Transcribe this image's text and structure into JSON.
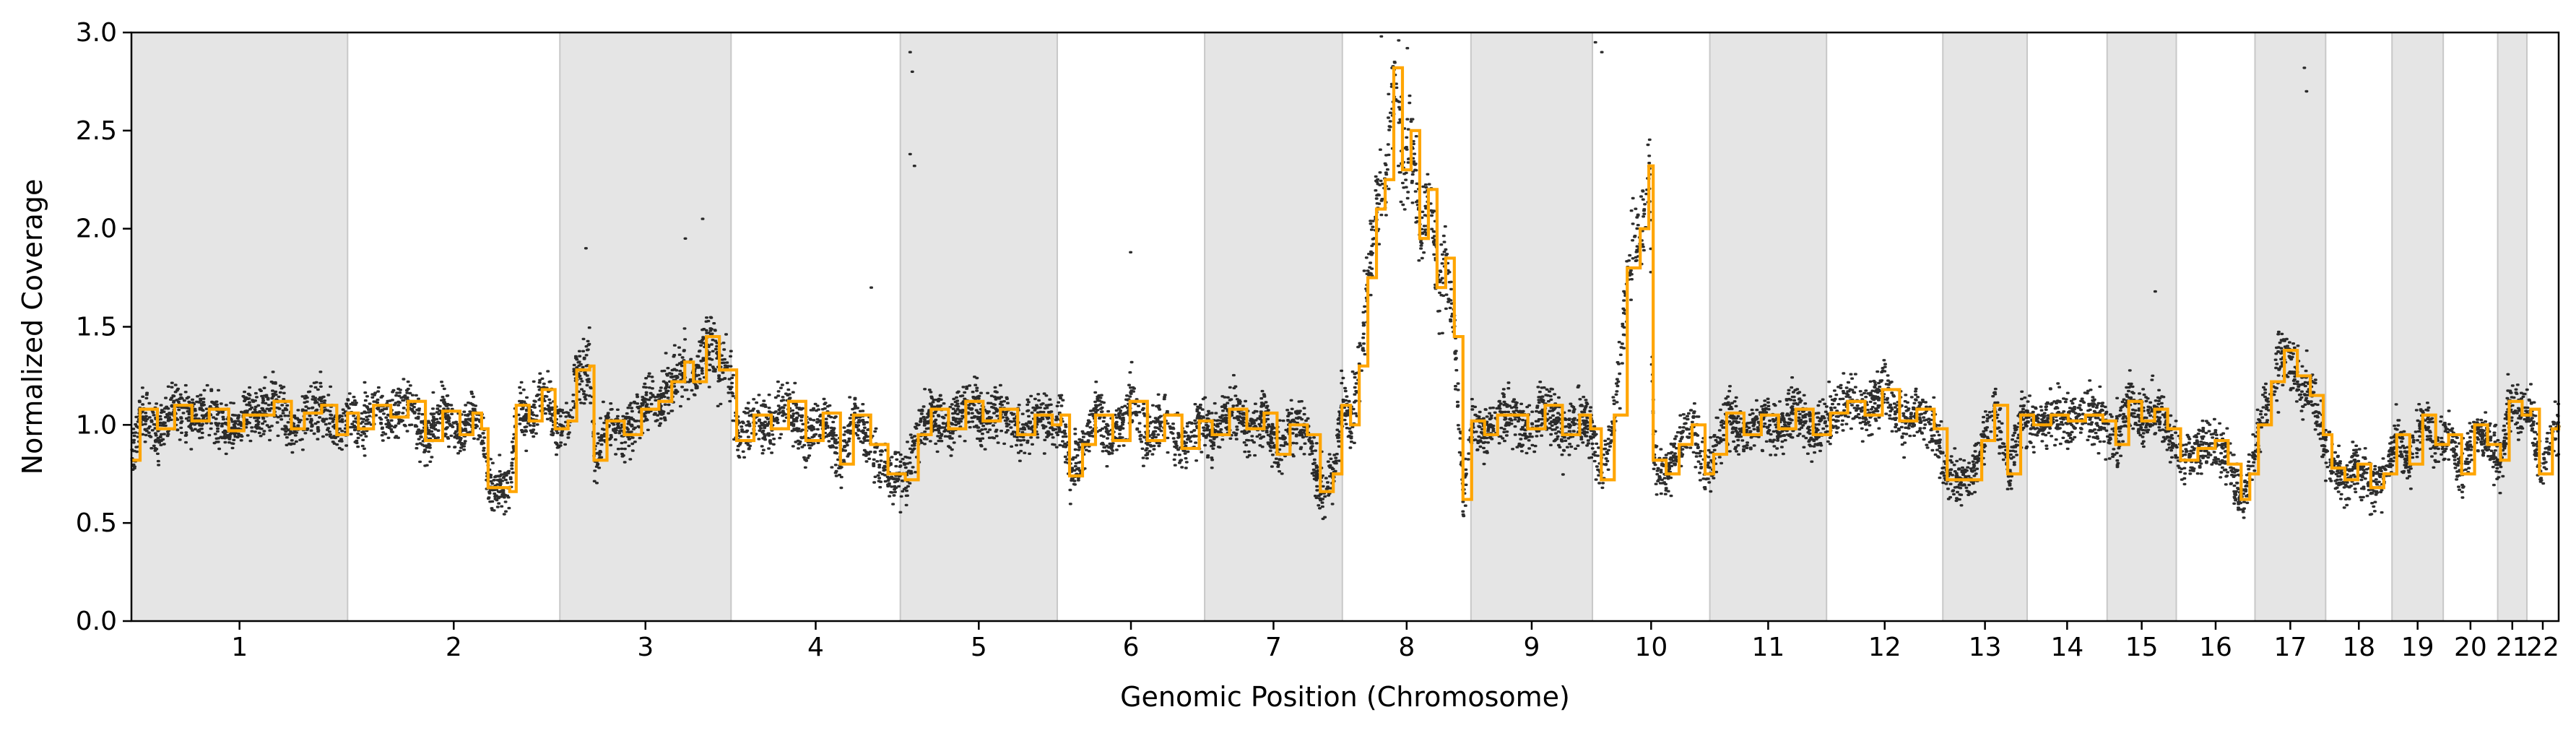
{
  "chart_data": {
    "type": "scatter",
    "xlabel": "Genomic Position (Chromosome)",
    "ylabel": "Normalized Coverage",
    "ylim": [
      0.0,
      3.0
    ],
    "yticks": [
      "0.0",
      "0.5",
      "1.0",
      "1.5",
      "2.0",
      "2.5",
      "3.0"
    ],
    "grid": false,
    "legend": "none",
    "colors": {
      "points": "#000000",
      "segments": "#FFA500",
      "band": "#E5E5E5",
      "band_edge": "#C8C8C8"
    },
    "chromosomes": [
      {
        "label": "1",
        "start": 0.0,
        "end": 1.0,
        "shaded": true
      },
      {
        "label": "2",
        "start": 1.0,
        "end": 1.982,
        "shaded": false
      },
      {
        "label": "3",
        "start": 1.982,
        "end": 2.774,
        "shaded": true
      },
      {
        "label": "4",
        "start": 2.774,
        "end": 3.557,
        "shaded": false
      },
      {
        "label": "5",
        "start": 3.557,
        "end": 4.283,
        "shaded": true
      },
      {
        "label": "6",
        "start": 4.283,
        "end": 4.965,
        "shaded": false
      },
      {
        "label": "7",
        "start": 4.965,
        "end": 5.602,
        "shaded": true
      },
      {
        "label": "8",
        "start": 5.602,
        "end": 6.197,
        "shaded": false
      },
      {
        "label": "9",
        "start": 6.197,
        "end": 6.759,
        "shaded": true
      },
      {
        "label": "10",
        "start": 6.759,
        "end": 7.302,
        "shaded": false
      },
      {
        "label": "11",
        "start": 7.302,
        "end": 7.842,
        "shaded": true
      },
      {
        "label": "12",
        "start": 7.842,
        "end": 8.38,
        "shaded": false
      },
      {
        "label": "13",
        "start": 8.38,
        "end": 8.77,
        "shaded": true
      },
      {
        "label": "14",
        "start": 8.77,
        "end": 9.14,
        "shaded": false
      },
      {
        "label": "15",
        "start": 9.14,
        "end": 9.46,
        "shaded": true
      },
      {
        "label": "16",
        "start": 9.46,
        "end": 9.824,
        "shaded": false
      },
      {
        "label": "17",
        "start": 9.824,
        "end": 10.151,
        "shaded": true
      },
      {
        "label": "18",
        "start": 10.151,
        "end": 10.458,
        "shaded": false
      },
      {
        "label": "19",
        "start": 10.458,
        "end": 10.695,
        "shaded": true
      },
      {
        "label": "20",
        "start": 10.695,
        "end": 10.947,
        "shaded": false
      },
      {
        "label": "21",
        "start": 10.947,
        "end": 11.082,
        "shaded": true
      },
      {
        "label": "22",
        "start": 11.082,
        "end": 11.229,
        "shaded": false
      }
    ],
    "segments": [
      {
        "x": 0.0,
        "y": 0.82
      },
      {
        "x": 0.04,
        "y": 1.08
      },
      {
        "x": 0.12,
        "y": 0.98
      },
      {
        "x": 0.2,
        "y": 1.1
      },
      {
        "x": 0.28,
        "y": 1.02
      },
      {
        "x": 0.36,
        "y": 1.08
      },
      {
        "x": 0.45,
        "y": 0.97
      },
      {
        "x": 0.52,
        "y": 1.05
      },
      {
        "x": 0.6,
        "y": 1.05
      },
      {
        "x": 0.66,
        "y": 1.12
      },
      {
        "x": 0.74,
        "y": 0.98
      },
      {
        "x": 0.8,
        "y": 1.06
      },
      {
        "x": 0.88,
        "y": 1.1
      },
      {
        "x": 0.95,
        "y": 0.95
      },
      {
        "x": 1.0,
        "y": 1.06
      },
      {
        "x": 1.05,
        "y": 0.98
      },
      {
        "x": 1.12,
        "y": 1.1
      },
      {
        "x": 1.2,
        "y": 1.04
      },
      {
        "x": 1.28,
        "y": 1.12
      },
      {
        "x": 1.36,
        "y": 0.92
      },
      {
        "x": 1.44,
        "y": 1.07
      },
      {
        "x": 1.52,
        "y": 0.95
      },
      {
        "x": 1.58,
        "y": 1.06
      },
      {
        "x": 1.62,
        "y": 0.98
      },
      {
        "x": 1.65,
        "y": 0.68
      },
      {
        "x": 1.75,
        "y": 0.66
      },
      {
        "x": 1.78,
        "y": 1.1
      },
      {
        "x": 1.84,
        "y": 1.02
      },
      {
        "x": 1.9,
        "y": 1.18
      },
      {
        "x": 1.96,
        "y": 0.98
      },
      {
        "x": 2.02,
        "y": 1.02
      },
      {
        "x": 2.06,
        "y": 1.28
      },
      {
        "x": 2.12,
        "y": 1.3
      },
      {
        "x": 2.14,
        "y": 0.82
      },
      {
        "x": 2.2,
        "y": 1.02
      },
      {
        "x": 2.28,
        "y": 0.95
      },
      {
        "x": 2.36,
        "y": 1.08
      },
      {
        "x": 2.44,
        "y": 1.12
      },
      {
        "x": 2.5,
        "y": 1.22
      },
      {
        "x": 2.56,
        "y": 1.32
      },
      {
        "x": 2.6,
        "y": 1.22
      },
      {
        "x": 2.66,
        "y": 1.45
      },
      {
        "x": 2.72,
        "y": 1.28
      },
      {
        "x": 2.77,
        "y": 1.28
      },
      {
        "x": 2.8,
        "y": 0.92
      },
      {
        "x": 2.88,
        "y": 1.05
      },
      {
        "x": 2.96,
        "y": 0.98
      },
      {
        "x": 3.04,
        "y": 1.12
      },
      {
        "x": 3.12,
        "y": 0.92
      },
      {
        "x": 3.2,
        "y": 1.06
      },
      {
        "x": 3.28,
        "y": 0.8
      },
      {
        "x": 3.34,
        "y": 1.05
      },
      {
        "x": 3.42,
        "y": 0.9
      },
      {
        "x": 3.5,
        "y": 0.75
      },
      {
        "x": 3.58,
        "y": 0.72
      },
      {
        "x": 3.64,
        "y": 0.95
      },
      {
        "x": 3.7,
        "y": 1.08
      },
      {
        "x": 3.78,
        "y": 0.98
      },
      {
        "x": 3.86,
        "y": 1.12
      },
      {
        "x": 3.94,
        "y": 1.02
      },
      {
        "x": 4.02,
        "y": 1.08
      },
      {
        "x": 4.1,
        "y": 0.95
      },
      {
        "x": 4.18,
        "y": 1.05
      },
      {
        "x": 4.26,
        "y": 1.0
      },
      {
        "x": 4.3,
        "y": 1.05
      },
      {
        "x": 4.34,
        "y": 0.74
      },
      {
        "x": 4.4,
        "y": 0.9
      },
      {
        "x": 4.46,
        "y": 1.05
      },
      {
        "x": 4.54,
        "y": 0.92
      },
      {
        "x": 4.62,
        "y": 1.12
      },
      {
        "x": 4.7,
        "y": 0.92
      },
      {
        "x": 4.78,
        "y": 1.05
      },
      {
        "x": 4.86,
        "y": 0.88
      },
      {
        "x": 4.94,
        "y": 1.02
      },
      {
        "x": 5.0,
        "y": 0.95
      },
      {
        "x": 5.08,
        "y": 1.08
      },
      {
        "x": 5.16,
        "y": 0.98
      },
      {
        "x": 5.24,
        "y": 1.06
      },
      {
        "x": 5.3,
        "y": 0.85
      },
      {
        "x": 5.36,
        "y": 1.0
      },
      {
        "x": 5.44,
        "y": 0.95
      },
      {
        "x": 5.5,
        "y": 0.66
      },
      {
        "x": 5.56,
        "y": 0.75
      },
      {
        "x": 5.6,
        "y": 1.1
      },
      {
        "x": 5.64,
        "y": 1.0
      },
      {
        "x": 5.68,
        "y": 1.3
      },
      {
        "x": 5.72,
        "y": 1.75
      },
      {
        "x": 5.76,
        "y": 2.1
      },
      {
        "x": 5.8,
        "y": 2.25
      },
      {
        "x": 5.84,
        "y": 2.82
      },
      {
        "x": 5.88,
        "y": 2.3
      },
      {
        "x": 5.92,
        "y": 2.5
      },
      {
        "x": 5.96,
        "y": 1.95
      },
      {
        "x": 6.0,
        "y": 2.2
      },
      {
        "x": 6.04,
        "y": 1.7
      },
      {
        "x": 6.08,
        "y": 1.85
      },
      {
        "x": 6.12,
        "y": 1.45
      },
      {
        "x": 6.16,
        "y": 0.62
      },
      {
        "x": 6.2,
        "y": 1.02
      },
      {
        "x": 6.26,
        "y": 0.95
      },
      {
        "x": 6.32,
        "y": 1.05
      },
      {
        "x": 6.38,
        "y": 1.05
      },
      {
        "x": 6.46,
        "y": 0.98
      },
      {
        "x": 6.54,
        "y": 1.1
      },
      {
        "x": 6.62,
        "y": 0.95
      },
      {
        "x": 6.7,
        "y": 1.05
      },
      {
        "x": 6.75,
        "y": 0.98
      },
      {
        "x": 6.8,
        "y": 0.72
      },
      {
        "x": 6.86,
        "y": 1.05
      },
      {
        "x": 6.92,
        "y": 1.8
      },
      {
        "x": 6.98,
        "y": 2.0
      },
      {
        "x": 7.02,
        "y": 2.32
      },
      {
        "x": 7.04,
        "y": 0.82
      },
      {
        "x": 7.1,
        "y": 0.75
      },
      {
        "x": 7.16,
        "y": 0.9
      },
      {
        "x": 7.22,
        "y": 1.0
      },
      {
        "x": 7.28,
        "y": 0.75
      },
      {
        "x": 7.32,
        "y": 0.85
      },
      {
        "x": 7.38,
        "y": 1.06
      },
      {
        "x": 7.46,
        "y": 0.95
      },
      {
        "x": 7.54,
        "y": 1.05
      },
      {
        "x": 7.62,
        "y": 0.98
      },
      {
        "x": 7.7,
        "y": 1.08
      },
      {
        "x": 7.78,
        "y": 0.95
      },
      {
        "x": 7.86,
        "y": 1.06
      },
      {
        "x": 7.94,
        "y": 1.12
      },
      {
        "x": 8.02,
        "y": 1.05
      },
      {
        "x": 8.1,
        "y": 1.18
      },
      {
        "x": 8.18,
        "y": 1.02
      },
      {
        "x": 8.26,
        "y": 1.08
      },
      {
        "x": 8.34,
        "y": 0.98
      },
      {
        "x": 8.4,
        "y": 0.72
      },
      {
        "x": 8.5,
        "y": 0.72
      },
      {
        "x": 8.56,
        "y": 0.92
      },
      {
        "x": 8.62,
        "y": 1.1
      },
      {
        "x": 8.68,
        "y": 0.75
      },
      {
        "x": 8.74,
        "y": 1.05
      },
      {
        "x": 8.8,
        "y": 1.0
      },
      {
        "x": 8.88,
        "y": 1.05
      },
      {
        "x": 8.96,
        "y": 1.02
      },
      {
        "x": 9.04,
        "y": 1.05
      },
      {
        "x": 9.12,
        "y": 1.02
      },
      {
        "x": 9.18,
        "y": 0.9
      },
      {
        "x": 9.24,
        "y": 1.12
      },
      {
        "x": 9.3,
        "y": 1.02
      },
      {
        "x": 9.36,
        "y": 1.08
      },
      {
        "x": 9.42,
        "y": 0.98
      },
      {
        "x": 9.48,
        "y": 0.82
      },
      {
        "x": 9.56,
        "y": 0.88
      },
      {
        "x": 9.64,
        "y": 0.92
      },
      {
        "x": 9.7,
        "y": 0.8
      },
      {
        "x": 9.76,
        "y": 0.62
      },
      {
        "x": 9.8,
        "y": 0.75
      },
      {
        "x": 9.84,
        "y": 1.0
      },
      {
        "x": 9.9,
        "y": 1.22
      },
      {
        "x": 9.96,
        "y": 1.38
      },
      {
        "x": 10.02,
        "y": 1.25
      },
      {
        "x": 10.08,
        "y": 1.15
      },
      {
        "x": 10.14,
        "y": 0.95
      },
      {
        "x": 10.18,
        "y": 0.78
      },
      {
        "x": 10.24,
        "y": 0.72
      },
      {
        "x": 10.3,
        "y": 0.8
      },
      {
        "x": 10.36,
        "y": 0.68
      },
      {
        "x": 10.42,
        "y": 0.75
      },
      {
        "x": 10.48,
        "y": 0.95
      },
      {
        "x": 10.54,
        "y": 0.8
      },
      {
        "x": 10.6,
        "y": 1.05
      },
      {
        "x": 10.66,
        "y": 0.9
      },
      {
        "x": 10.72,
        "y": 0.95
      },
      {
        "x": 10.78,
        "y": 0.75
      },
      {
        "x": 10.84,
        "y": 1.0
      },
      {
        "x": 10.9,
        "y": 0.9
      },
      {
        "x": 10.96,
        "y": 0.82
      },
      {
        "x": 11.0,
        "y": 1.12
      },
      {
        "x": 11.06,
        "y": 1.05
      },
      {
        "x": 11.1,
        "y": 1.08
      },
      {
        "x": 11.14,
        "y": 0.75
      },
      {
        "x": 11.2,
        "y": 0.98
      },
      {
        "x": 11.229,
        "y": 1.0
      }
    ],
    "outliers": [
      {
        "x": 3.6,
        "y": 2.9
      },
      {
        "x": 3.61,
        "y": 2.8
      },
      {
        "x": 3.6,
        "y": 2.38
      },
      {
        "x": 3.62,
        "y": 2.32
      },
      {
        "x": 10.05,
        "y": 2.82
      },
      {
        "x": 10.06,
        "y": 2.7
      },
      {
        "x": 6.77,
        "y": 2.95
      },
      {
        "x": 6.8,
        "y": 2.9
      },
      {
        "x": 4.62,
        "y": 1.88
      },
      {
        "x": 2.56,
        "y": 1.95
      },
      {
        "x": 2.64,
        "y": 2.05
      },
      {
        "x": 5.86,
        "y": 2.96
      },
      {
        "x": 5.78,
        "y": 2.98
      },
      {
        "x": 5.9,
        "y": 2.92
      },
      {
        "x": 3.42,
        "y": 1.7
      },
      {
        "x": 9.36,
        "y": 1.68
      },
      {
        "x": 2.1,
        "y": 1.9
      }
    ]
  }
}
